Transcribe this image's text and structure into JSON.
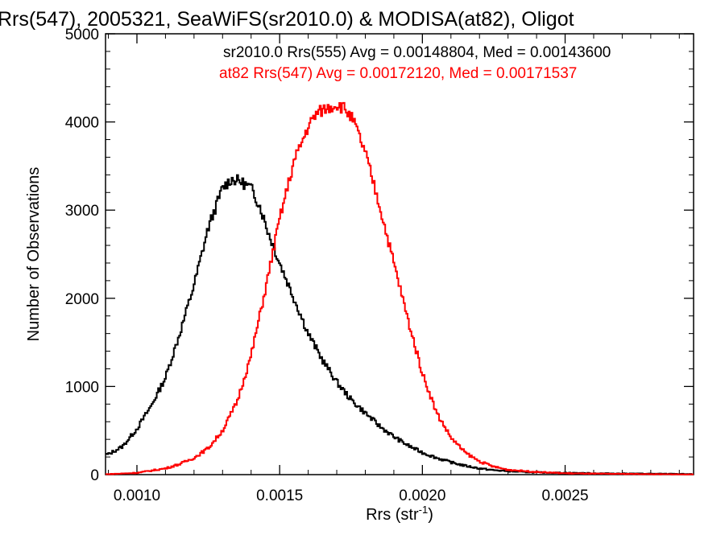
{
  "chart_data": {
    "type": "line",
    "title": "Rrs(547), 2005321, SeaWiFS(sr2010.0) & MODISA(at82), Oligot",
    "xlabel_main": "Rrs (str",
    "xlabel_sup": "-1",
    "xlabel_close": ")",
    "ylabel": "Number of Observations",
    "xlim": [
      0.00089,
      0.00295
    ],
    "ylim": [
      0,
      5000
    ],
    "x_ticks": [
      {
        "value": 0.001,
        "label": "0.0010"
      },
      {
        "value": 0.0015,
        "label": "0.0015"
      },
      {
        "value": 0.002,
        "label": "0.0020"
      },
      {
        "value": 0.0025,
        "label": "0.0025"
      }
    ],
    "y_ticks": [
      {
        "value": 0,
        "label": "0"
      },
      {
        "value": 1000,
        "label": "1000"
      },
      {
        "value": 2000,
        "label": "2000"
      },
      {
        "value": 3000,
        "label": "3000"
      },
      {
        "value": 4000,
        "label": "4000"
      },
      {
        "value": 5000,
        "label": "5000"
      }
    ],
    "series": [
      {
        "name": "sr2010.0 Rrs(555)",
        "legend": "sr2010.0 Rrs(555) Avg = 0.00148804, Med = 0.00143600",
        "color": "#000000",
        "x": [
          0.0009,
          0.00095,
          0.001,
          0.00105,
          0.0011,
          0.00115,
          0.0012,
          0.00125,
          0.0013,
          0.00133,
          0.00136,
          0.0014,
          0.00143,
          0.00146,
          0.0015,
          0.00155,
          0.0016,
          0.00165,
          0.0017,
          0.00175,
          0.0018,
          0.00185,
          0.0019,
          0.00195,
          0.002,
          0.00205,
          0.0021,
          0.00215,
          0.0022,
          0.00225,
          0.0023,
          0.00235,
          0.0024,
          0.0025,
          0.0026,
          0.0027,
          0.0028,
          0.0029,
          0.00295
        ],
        "y": [
          230,
          320,
          520,
          780,
          1100,
          1600,
          2150,
          2800,
          3250,
          3350,
          3330,
          3250,
          3050,
          2750,
          2400,
          2000,
          1600,
          1300,
          1050,
          850,
          700,
          550,
          430,
          330,
          250,
          190,
          140,
          100,
          70,
          50,
          40,
          30,
          25,
          20,
          15,
          12,
          10,
          8,
          5
        ]
      },
      {
        "name": "at82 Rrs(547)",
        "legend": "at82 Rrs(547) Avg = 0.00172120, Med = 0.00171537",
        "color": "#ff0000",
        "x": [
          0.0009,
          0.001,
          0.0011,
          0.00115,
          0.0012,
          0.00125,
          0.0013,
          0.00135,
          0.0014,
          0.00145,
          0.0015,
          0.00155,
          0.0016,
          0.00163,
          0.00166,
          0.0017,
          0.00173,
          0.00176,
          0.0018,
          0.00185,
          0.0019,
          0.00195,
          0.002,
          0.00205,
          0.0021,
          0.00215,
          0.0022,
          0.00225,
          0.0023,
          0.0024,
          0.0025,
          0.0026,
          0.0027,
          0.0028,
          0.0029,
          0.00295
        ],
        "y": [
          5,
          20,
          70,
          120,
          190,
          300,
          500,
          820,
          1350,
          2100,
          2900,
          3550,
          3950,
          4100,
          4150,
          4200,
          4150,
          4000,
          3650,
          3050,
          2400,
          1750,
          1150,
          700,
          420,
          250,
          150,
          90,
          55,
          30,
          15,
          10,
          8,
          5,
          3,
          2
        ]
      }
    ]
  }
}
